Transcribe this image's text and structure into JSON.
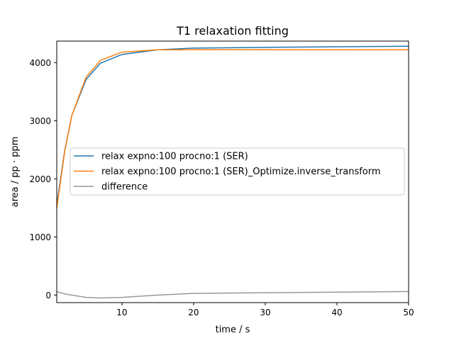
{
  "chart_data": {
    "type": "line",
    "title": "T1 relaxation fitting",
    "xlabel": "time / s",
    "ylabel": "area / pp · ppm",
    "xlim": [
      0.9,
      50
    ],
    "ylim": [
      -130,
      4370
    ],
    "x_ticks": [
      10,
      20,
      30,
      40,
      50
    ],
    "y_ticks": [
      0,
      1000,
      2000,
      3000,
      4000
    ],
    "grid": false,
    "legend_position": "center-left",
    "series": [
      {
        "name": "relax expno:100 procno:1 (SER)",
        "color": "#1f77b4",
        "x": [
          0.9,
          2,
          3,
          5,
          7,
          10,
          15,
          20,
          30,
          40,
          50
        ],
        "y": [
          1550,
          2480,
          3090,
          3710,
          3990,
          4140,
          4220,
          4250,
          4262,
          4272,
          4282
        ]
      },
      {
        "name": "relax expno:100 procno:1 (SER)_Optimize.inverse_transform",
        "color": "#ff7f0e",
        "x": [
          0.9,
          2,
          3,
          5,
          7,
          10,
          15,
          20,
          30,
          40,
          50
        ],
        "y": [
          1490,
          2460,
          3090,
          3750,
          4040,
          4180,
          4220,
          4222,
          4222,
          4222,
          4222
        ]
      },
      {
        "name": "difference",
        "color": "#999999",
        "x": [
          0.9,
          2,
          3,
          5,
          7,
          10,
          15,
          20,
          30,
          40,
          50
        ],
        "y": [
          60,
          20,
          0,
          -40,
          -50,
          -40,
          0,
          28,
          40,
          50,
          60
        ]
      }
    ]
  }
}
